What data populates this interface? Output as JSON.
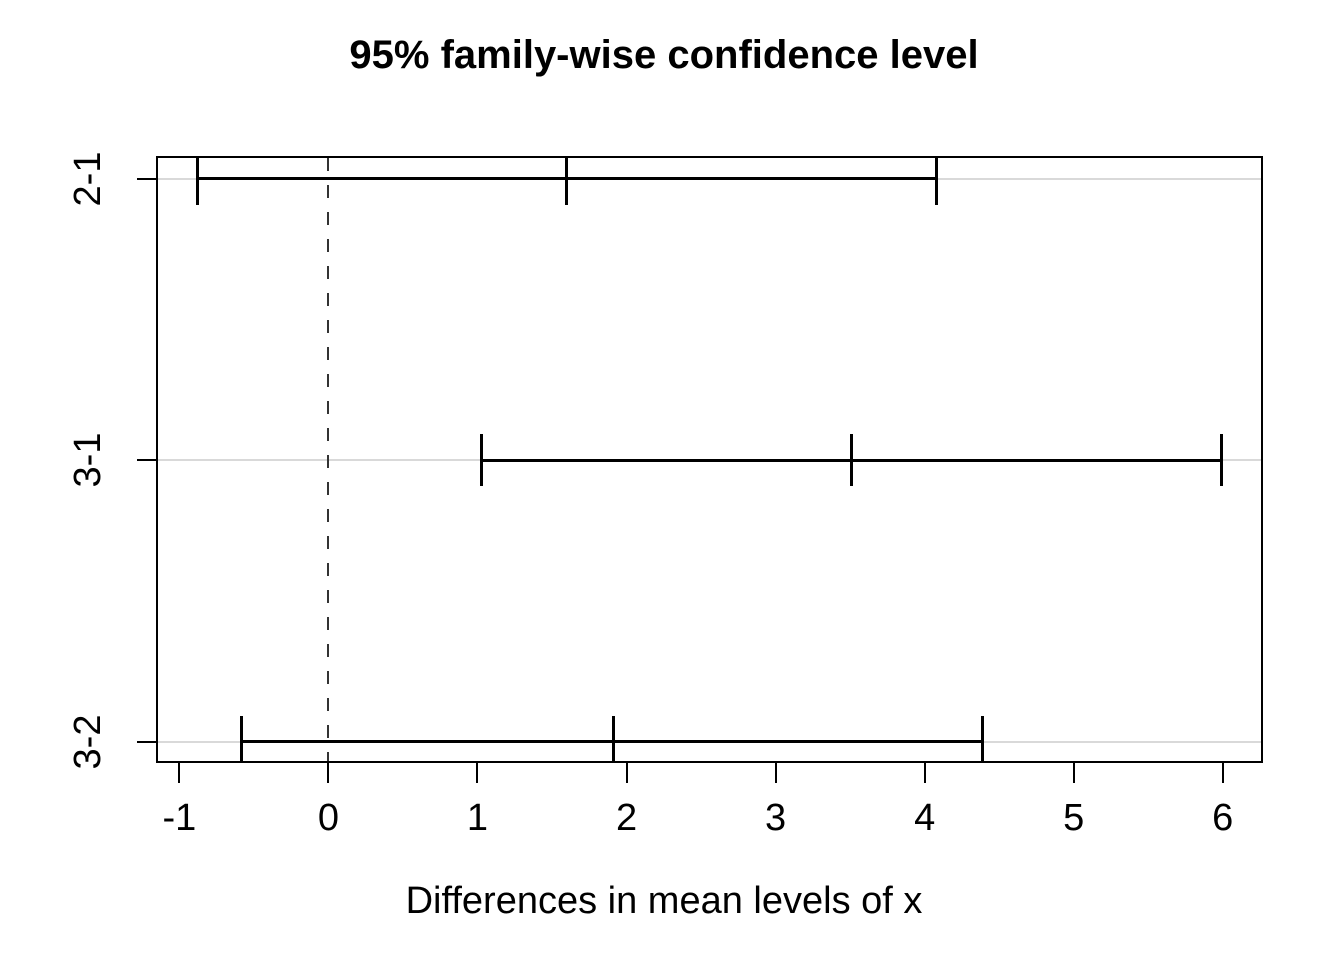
{
  "chart_data": {
    "type": "errorbar",
    "title": "95% family-wise confidence level",
    "xlabel": "Differences in mean levels of x",
    "ylabel": "",
    "categories": [
      "2-1",
      "3-1",
      "3-2"
    ],
    "comparisons": [
      {
        "label": "2-1",
        "lower": -0.88,
        "diff": 1.6,
        "upper": 4.08
      },
      {
        "label": "3-1",
        "lower": 1.03,
        "diff": 3.51,
        "upper": 5.99
      },
      {
        "label": "3-2",
        "lower": -0.58,
        "diff": 1.91,
        "upper": 4.39
      }
    ],
    "x_ticks": [
      -1,
      0,
      1,
      2,
      3,
      4,
      5,
      6
    ],
    "xlim": [
      -1.15,
      6.27
    ],
    "reference_line": {
      "x": 0,
      "style": "dashed"
    },
    "grid": "horizontal line at each comparison row",
    "legend_position": "none",
    "colors": {
      "line": "#000000",
      "grid": "#d9d9d9",
      "reference": "#333333",
      "background": "#ffffff",
      "text": "#000000"
    }
  }
}
